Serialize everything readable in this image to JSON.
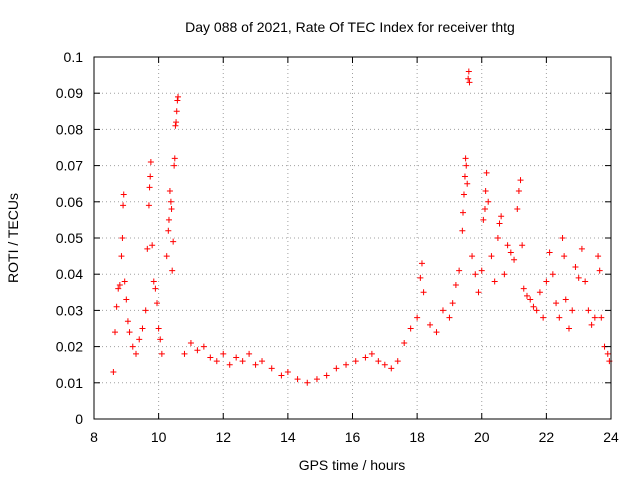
{
  "chart_data": {
    "type": "scatter",
    "title": "Day 088 of 2021, Rate Of TEC Index for receiver thtg",
    "xlabel": "GPS time / hours",
    "ylabel": "ROTI / TECUs",
    "xlim": [
      8,
      24
    ],
    "ylim": [
      0,
      0.1
    ],
    "x_ticks": [
      "8",
      "10",
      "12",
      "14",
      "16",
      "18",
      "20",
      "22",
      "24"
    ],
    "y_ticks": [
      "0",
      "0.01",
      "0.02",
      "0.03",
      "0.04",
      "0.05",
      "0.06",
      "0.07",
      "0.08",
      "0.09",
      "0.1"
    ],
    "grid": true,
    "marker": "+",
    "color": "#ff0000",
    "series": [
      {
        "points": [
          [
            8.6,
            0.013
          ],
          [
            8.65,
            0.024
          ],
          [
            8.7,
            0.031
          ],
          [
            8.75,
            0.036
          ],
          [
            8.8,
            0.037
          ],
          [
            8.85,
            0.045
          ],
          [
            8.88,
            0.05
          ],
          [
            8.9,
            0.059
          ],
          [
            8.92,
            0.062
          ],
          [
            8.95,
            0.038
          ],
          [
            9.0,
            0.033
          ],
          [
            9.05,
            0.027
          ],
          [
            9.1,
            0.024
          ],
          [
            9.2,
            0.02
          ],
          [
            9.3,
            0.018
          ],
          [
            9.4,
            0.022
          ],
          [
            9.5,
            0.025
          ],
          [
            9.6,
            0.03
          ],
          [
            9.65,
            0.047
          ],
          [
            9.7,
            0.059
          ],
          [
            9.72,
            0.064
          ],
          [
            9.74,
            0.067
          ],
          [
            9.76,
            0.071
          ],
          [
            9.8,
            0.048
          ],
          [
            9.85,
            0.038
          ],
          [
            9.9,
            0.036
          ],
          [
            9.95,
            0.032
          ],
          [
            10.0,
            0.025
          ],
          [
            10.05,
            0.022
          ],
          [
            10.1,
            0.018
          ],
          [
            10.25,
            0.045
          ],
          [
            10.3,
            0.052
          ],
          [
            10.32,
            0.055
          ],
          [
            10.35,
            0.063
          ],
          [
            10.38,
            0.06
          ],
          [
            10.4,
            0.058
          ],
          [
            10.42,
            0.041
          ],
          [
            10.45,
            0.049
          ],
          [
            10.48,
            0.07
          ],
          [
            10.5,
            0.072
          ],
          [
            10.52,
            0.081
          ],
          [
            10.54,
            0.082
          ],
          [
            10.56,
            0.085
          ],
          [
            10.58,
            0.088
          ],
          [
            10.6,
            0.089
          ],
          [
            10.8,
            0.018
          ],
          [
            11.0,
            0.021
          ],
          [
            11.2,
            0.019
          ],
          [
            11.4,
            0.02
          ],
          [
            11.6,
            0.017
          ],
          [
            11.8,
            0.016
          ],
          [
            12.0,
            0.018
          ],
          [
            12.2,
            0.015
          ],
          [
            12.4,
            0.017
          ],
          [
            12.6,
            0.016
          ],
          [
            12.8,
            0.018
          ],
          [
            13.0,
            0.015
          ],
          [
            13.2,
            0.016
          ],
          [
            13.5,
            0.014
          ],
          [
            13.8,
            0.012
          ],
          [
            14.0,
            0.013
          ],
          [
            14.3,
            0.011
          ],
          [
            14.6,
            0.01
          ],
          [
            14.9,
            0.011
          ],
          [
            15.2,
            0.012
          ],
          [
            15.5,
            0.014
          ],
          [
            15.8,
            0.015
          ],
          [
            16.1,
            0.016
          ],
          [
            16.4,
            0.017
          ],
          [
            16.6,
            0.018
          ],
          [
            16.8,
            0.016
          ],
          [
            17.0,
            0.015
          ],
          [
            17.2,
            0.014
          ],
          [
            17.4,
            0.016
          ],
          [
            17.6,
            0.021
          ],
          [
            17.8,
            0.025
          ],
          [
            18.0,
            0.028
          ],
          [
            18.1,
            0.039
          ],
          [
            18.15,
            0.043
          ],
          [
            18.2,
            0.035
          ],
          [
            18.4,
            0.026
          ],
          [
            18.6,
            0.024
          ],
          [
            18.8,
            0.03
          ],
          [
            19.0,
            0.028
          ],
          [
            19.1,
            0.032
          ],
          [
            19.2,
            0.037
          ],
          [
            19.3,
            0.041
          ],
          [
            19.4,
            0.052
          ],
          [
            19.42,
            0.057
          ],
          [
            19.45,
            0.062
          ],
          [
            19.48,
            0.067
          ],
          [
            19.5,
            0.072
          ],
          [
            19.52,
            0.07
          ],
          [
            19.55,
            0.065
          ],
          [
            19.58,
            0.094
          ],
          [
            19.6,
            0.096
          ],
          [
            19.62,
            0.093
          ],
          [
            19.7,
            0.045
          ],
          [
            19.8,
            0.04
          ],
          [
            19.9,
            0.035
          ],
          [
            20.0,
            0.041
          ],
          [
            20.05,
            0.055
          ],
          [
            20.1,
            0.058
          ],
          [
            20.12,
            0.063
          ],
          [
            20.15,
            0.068
          ],
          [
            20.2,
            0.06
          ],
          [
            20.3,
            0.045
          ],
          [
            20.4,
            0.038
          ],
          [
            20.5,
            0.05
          ],
          [
            20.55,
            0.054
          ],
          [
            20.6,
            0.056
          ],
          [
            20.7,
            0.04
          ],
          [
            20.8,
            0.048
          ],
          [
            20.9,
            0.046
          ],
          [
            21.0,
            0.044
          ],
          [
            21.1,
            0.058
          ],
          [
            21.15,
            0.063
          ],
          [
            21.2,
            0.066
          ],
          [
            21.25,
            0.048
          ],
          [
            21.3,
            0.036
          ],
          [
            21.4,
            0.034
          ],
          [
            21.5,
            0.033
          ],
          [
            21.6,
            0.031
          ],
          [
            21.7,
            0.03
          ],
          [
            21.8,
            0.035
          ],
          [
            21.9,
            0.028
          ],
          [
            22.0,
            0.038
          ],
          [
            22.1,
            0.046
          ],
          [
            22.2,
            0.04
          ],
          [
            22.3,
            0.032
          ],
          [
            22.4,
            0.028
          ],
          [
            22.5,
            0.05
          ],
          [
            22.55,
            0.045
          ],
          [
            22.6,
            0.033
          ],
          [
            22.7,
            0.025
          ],
          [
            22.8,
            0.03
          ],
          [
            22.9,
            0.042
          ],
          [
            23.0,
            0.039
          ],
          [
            23.1,
            0.047
          ],
          [
            23.2,
            0.038
          ],
          [
            23.3,
            0.03
          ],
          [
            23.4,
            0.026
          ],
          [
            23.5,
            0.028
          ],
          [
            23.6,
            0.045
          ],
          [
            23.65,
            0.041
          ],
          [
            23.7,
            0.028
          ],
          [
            23.8,
            0.02
          ],
          [
            23.9,
            0.018
          ],
          [
            23.95,
            0.016
          ]
        ]
      }
    ]
  }
}
